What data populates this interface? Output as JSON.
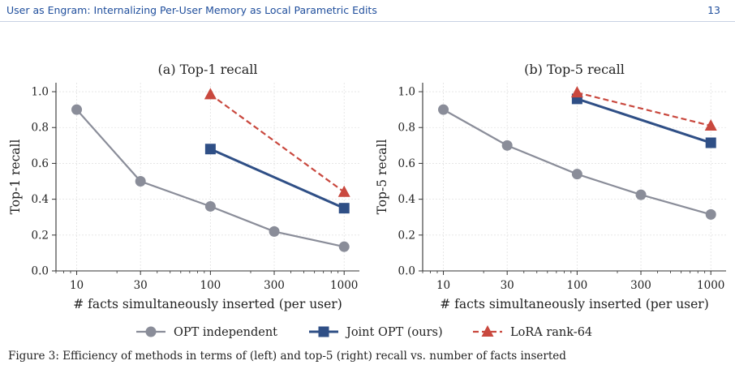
{
  "header": {
    "title": "User as Engram: Internalizing Per-User Memory as Local Parametric Edits",
    "page_number": "13"
  },
  "caption": "Figure 3: Efficiency of methods in terms of (left) and top-5 (right) recall vs. number of facts inserted",
  "legend": [
    {
      "name": "OPT independent",
      "color": "#8a8d99",
      "marker": "circle",
      "dash": false
    },
    {
      "name": "Joint OPT (ours)",
      "color": "#2f4f86",
      "marker": "square",
      "dash": false
    },
    {
      "name": "LoRA rank-64",
      "color": "#c9483e",
      "marker": "triangle",
      "dash": true
    }
  ],
  "chart_data": [
    {
      "type": "line",
      "title": "(a) Top-1 recall",
      "xlabel": "# facts simultaneously inserted (per user)",
      "ylabel": "Top-1 recall",
      "x_scale": "log",
      "xlim": [
        7,
        1300
      ],
      "ylim": [
        0.0,
        1.05
      ],
      "xticks": [
        10,
        30,
        100,
        300,
        1000
      ],
      "xtick_labels": [
        "10",
        "30",
        "100",
        "300",
        "1000"
      ],
      "yticks": [
        0.0,
        0.2,
        0.4,
        0.6,
        0.8,
        1.0
      ],
      "ytick_labels": [
        "0.0",
        "0.2",
        "0.4",
        "0.6",
        "0.8",
        "1.0"
      ],
      "grid": true,
      "series": [
        {
          "name": "OPT independent",
          "x": [
            10,
            30,
            100,
            300,
            1000
          ],
          "y": [
            0.9,
            0.5,
            0.36,
            0.22,
            0.135
          ]
        },
        {
          "name": "Joint OPT (ours)",
          "x": [
            100,
            1000
          ],
          "y": [
            0.68,
            0.35
          ]
        },
        {
          "name": "LoRA rank-64",
          "x": [
            100,
            1000
          ],
          "y": [
            0.985,
            0.44
          ]
        }
      ]
    },
    {
      "type": "line",
      "title": "(b) Top-5 recall",
      "xlabel": "# facts simultaneously inserted (per user)",
      "ylabel": "Top-5 recall",
      "x_scale": "log",
      "xlim": [
        7,
        1300
      ],
      "ylim": [
        0.0,
        1.05
      ],
      "xticks": [
        10,
        30,
        100,
        300,
        1000
      ],
      "xtick_labels": [
        "10",
        "30",
        "100",
        "300",
        "1000"
      ],
      "yticks": [
        0.0,
        0.2,
        0.4,
        0.6,
        0.8,
        1.0
      ],
      "ytick_labels": [
        "0.0",
        "0.2",
        "0.4",
        "0.6",
        "0.8",
        "1.0"
      ],
      "grid": true,
      "series": [
        {
          "name": "OPT independent",
          "x": [
            10,
            30,
            100,
            300,
            1000
          ],
          "y": [
            0.9,
            0.7,
            0.54,
            0.425,
            0.315
          ]
        },
        {
          "name": "Joint OPT (ours)",
          "x": [
            100,
            1000
          ],
          "y": [
            0.96,
            0.715
          ]
        },
        {
          "name": "LoRA rank-64",
          "x": [
            100,
            1000
          ],
          "y": [
            0.995,
            0.81
          ]
        }
      ]
    }
  ]
}
